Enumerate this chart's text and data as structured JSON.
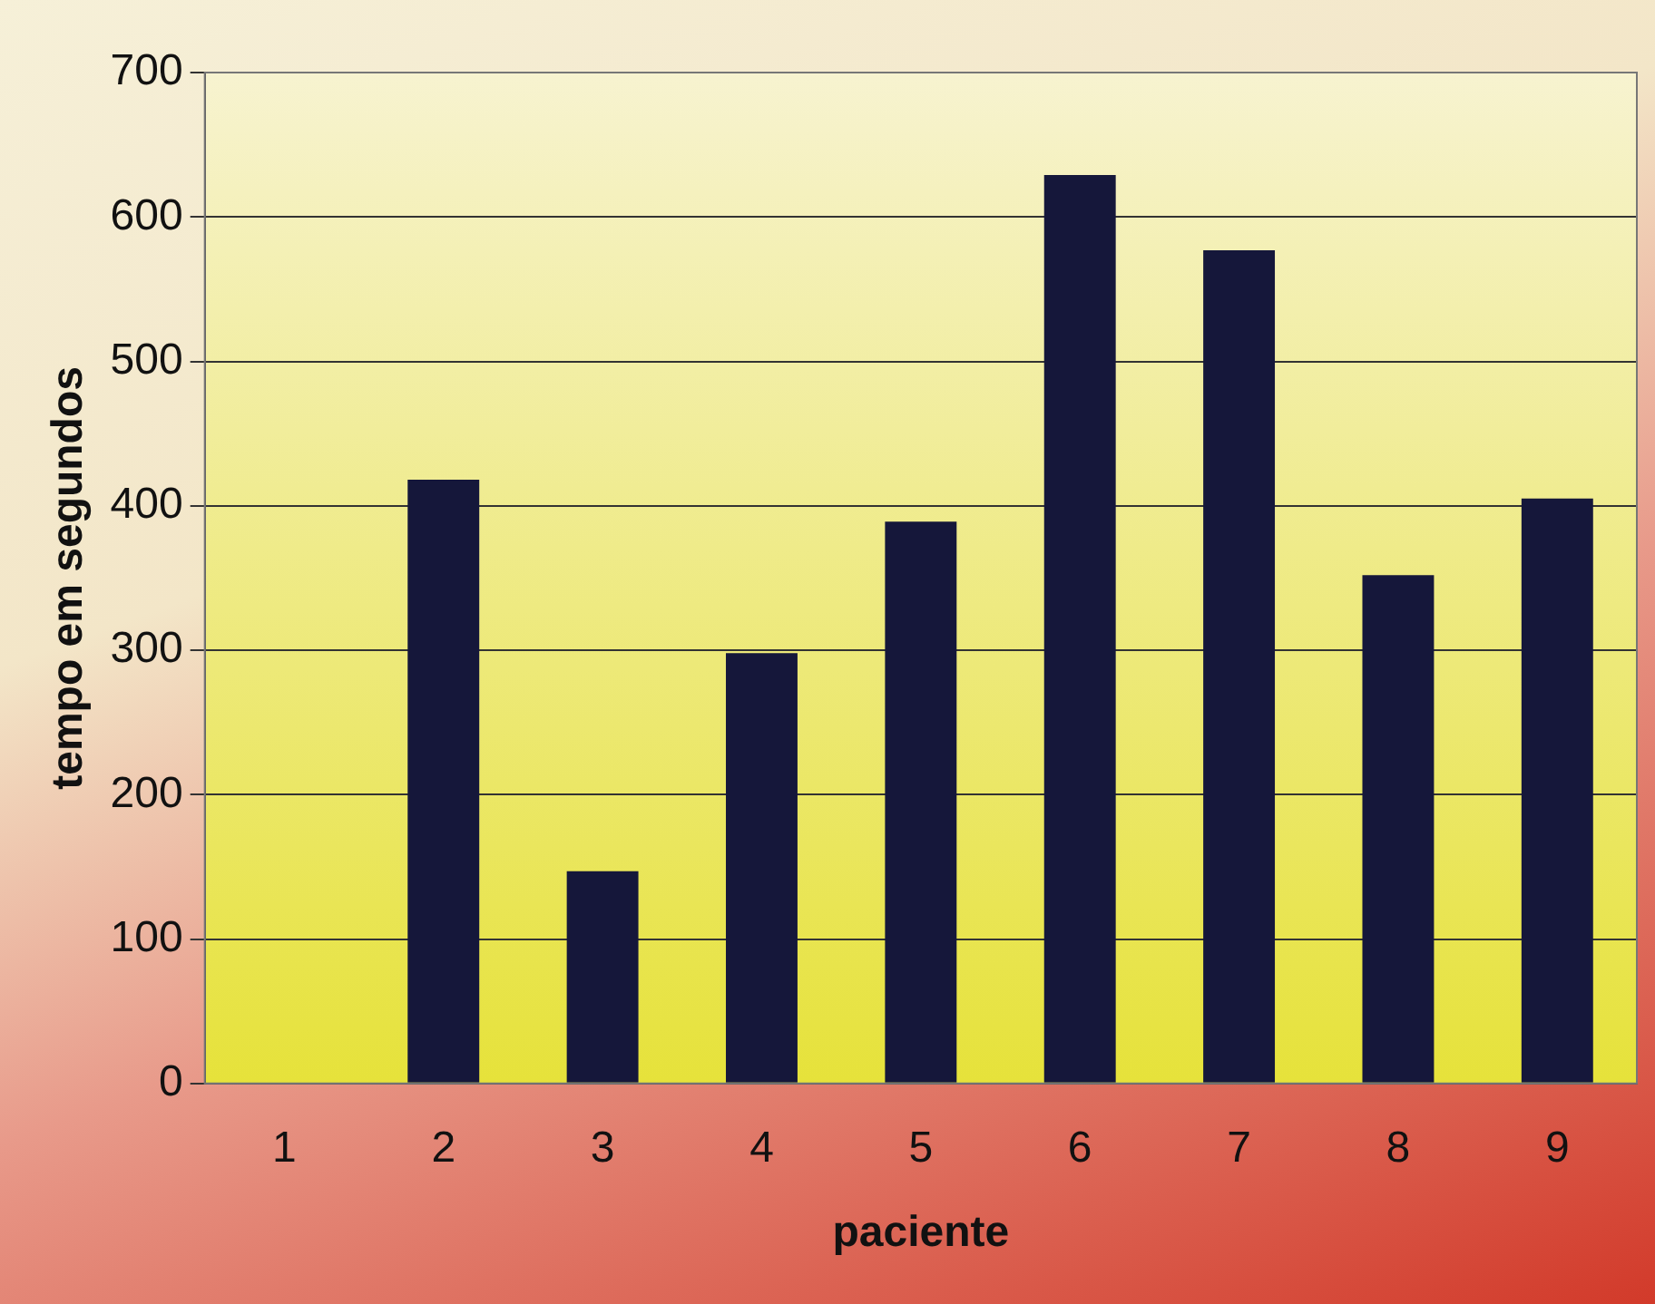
{
  "chart_data": {
    "type": "bar",
    "xlabel": "paciente",
    "ylabel": "tempo em segundos",
    "categories": [
      "1",
      "2",
      "3",
      "4",
      "5",
      "6",
      "7",
      "8",
      "9"
    ],
    "values": [
      0,
      418,
      147,
      298,
      389,
      629,
      577,
      352,
      405
    ],
    "color": "#15173a",
    "ylim": [
      0,
      700
    ],
    "yticks": [
      0,
      100,
      200,
      300,
      400,
      500,
      600,
      700
    ],
    "grid": "y",
    "legend": false
  }
}
